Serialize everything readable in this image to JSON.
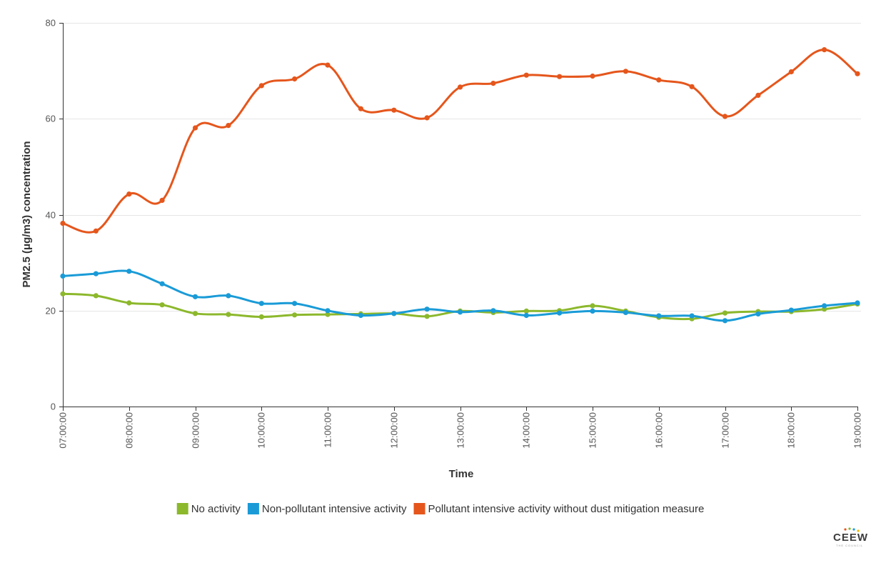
{
  "chart_data": {
    "type": "line",
    "title": "",
    "xlabel": "Time",
    "ylabel": "PM2.5 (μg/m3) concentration",
    "ylim": [
      0,
      80
    ],
    "yticks": [
      0,
      20,
      40,
      60,
      80
    ],
    "xticks": [
      "07:00:00",
      "08:00:00",
      "09:00:00",
      "10:00:00",
      "11:00:00",
      "12:00:00",
      "13:00:00",
      "14:00:00",
      "15:00:00",
      "16:00:00",
      "17:00:00",
      "18:00:00",
      "19:00:00"
    ],
    "x": [
      "07:00:00",
      "07:30:00",
      "08:00:00",
      "08:30:00",
      "09:00:00",
      "09:30:00",
      "10:00:00",
      "10:30:00",
      "11:00:00",
      "11:30:00",
      "12:00:00",
      "12:30:00",
      "13:00:00",
      "13:30:00",
      "14:00:00",
      "14:30:00",
      "15:00:00",
      "15:30:00",
      "16:00:00",
      "16:30:00",
      "17:00:00",
      "17:30:00",
      "18:00:00",
      "18:30:00",
      "19:00:00"
    ],
    "grid": "horizontal",
    "legend_position": "bottom",
    "series": [
      {
        "name": "No activity",
        "color": "#8cb82c",
        "values": [
          23.5,
          23.1,
          21.6,
          21.2,
          19.4,
          19.2,
          18.7,
          19.1,
          19.2,
          19.3,
          19.4,
          18.8,
          19.9,
          19.6,
          19.9,
          20.0,
          21.0,
          19.9,
          18.6,
          18.3,
          19.5,
          19.8,
          19.8,
          20.3,
          21.4
        ],
        "legend_label": "No activity"
      },
      {
        "name": "Non-pollutant intensive activity",
        "color": "#1a9bd7",
        "values": [
          27.2,
          27.7,
          28.2,
          25.6,
          22.9,
          23.1,
          21.5,
          21.5,
          20.0,
          19.0,
          19.4,
          20.3,
          19.7,
          20.0,
          19.0,
          19.5,
          19.9,
          19.6,
          18.9,
          18.9,
          17.9,
          19.3,
          20.1,
          21.0,
          21.6
        ],
        "legend_label": "Non-pollutant intensive activity"
      },
      {
        "name": "Pollutant intensive activity without dust mitigation measure",
        "color": "#e5561c",
        "values": [
          38.2,
          36.6,
          44.3,
          43.0,
          58.1,
          58.6,
          66.9,
          68.3,
          71.2,
          62.1,
          61.8,
          60.2,
          66.6,
          67.4,
          69.1,
          68.8,
          68.9,
          69.9,
          68.1,
          66.7,
          60.5,
          64.9,
          69.8,
          74.4,
          69.4
        ],
        "legend_label": "Pollutant intensive activity without dust mitigation measure"
      }
    ]
  },
  "logo": {
    "text": "CEEW",
    "subtext": "THE COUNCIL",
    "dot_colors": [
      "#e5561c",
      "#8cb82c",
      "#1a9bd7",
      "#f2b705"
    ]
  }
}
